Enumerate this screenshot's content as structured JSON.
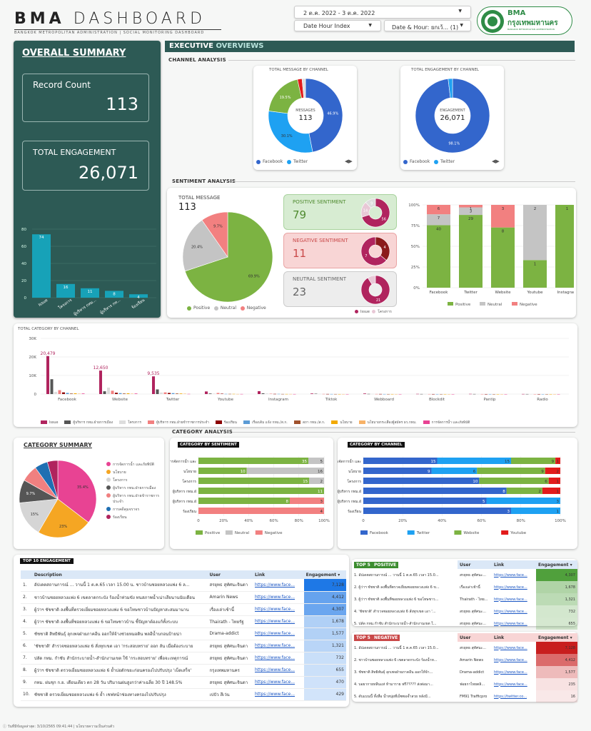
{
  "header": {
    "title_bold": "BMA",
    "title_light": "DASHBOARD",
    "subtitle": "BANGKOK METROPOLITAN ADMINISTRATION | SOCIAL MONITORING DASHBOARD",
    "date_range": "2 ต.ค. 2022 - 3 ต.ค. 2022",
    "dim1": "Date Hour Index",
    "dim2": "Date & Hour: ยกเว้...",
    "dim2_count": "(1)",
    "logo_top": "BMA",
    "logo_mid": "กรุงเทพมหานคร",
    "logo_bot": "BANGKOK METROPOLITAN ADMINISTRATION"
  },
  "summary": {
    "title": "OVERALL SUMMARY",
    "record_label": "Record Count",
    "record_value": "113",
    "eng_label": "TOTAL ENGAGEMENT",
    "eng_value": "26,071",
    "bars": {
      "categories": [
        "Issue",
        "โครงการ",
        "ผู้บริหาร กทม...",
        "ผู้บริหาร กท...",
        "ร้องเรียน"
      ],
      "values": [
        74,
        16,
        11,
        8,
        4
      ],
      "yticks": [
        "80",
        "60",
        "40",
        "20",
        "0"
      ]
    }
  },
  "exec": {
    "title_a": "EXECUTIVE",
    "title_b": "OVERVIEWS",
    "channel_analysis": "CHANNEL ANALYSIS",
    "sentiment_analysis": "SENTIMENT ANALYSIS",
    "category_analysis": "CATEGORY ANALYSIS"
  },
  "donut1": {
    "title": "TOTAL MESSAGE BY CHANNEL",
    "center_label": "MESSAGES",
    "center_value": "113",
    "labels": [
      "46.9%",
      "30.1%",
      "19.5%"
    ],
    "legend": [
      "Facebook",
      "Twitter"
    ]
  },
  "donut2": {
    "title": "TOTAL ENGAGEMENT BY CHANNEL",
    "center_label": "ENGAGEMENT",
    "center_value": "26,071",
    "labels": [
      "98.1%"
    ],
    "legend": [
      "Facebook",
      "Twitter"
    ]
  },
  "sentpie": {
    "label": "TOTAL MESSAGE",
    "value": "113",
    "slices": [
      "69.9%",
      "20.4%",
      "9.7%"
    ],
    "legend": [
      "Positive",
      "Neutral",
      "Negative"
    ]
  },
  "sentbox": {
    "pos_label": "POSITIVE SENTIMENT",
    "pos_value": "79",
    "neg_label": "NEGATIVE SENTIMENT",
    "neg_value": "11",
    "neu_label": "NEUTRAL SENTIMENT",
    "neu_value": "23",
    "legend": [
      "Issue",
      "โครงการ"
    ],
    "pos_ring": [
      "56",
      "14",
      "9"
    ],
    "neg_ring": [
      "4",
      "7"
    ],
    "neu_ring": [
      "21"
    ]
  },
  "chart_data": [
    {
      "type": "bar",
      "title": "",
      "categories": [
        "Facebook",
        "Twitter",
        "Website",
        "Youtube",
        "Instagram"
      ],
      "series": [
        {
          "name": "Positive",
          "values": [
            40,
            29,
            8,
            1,
            1
          ]
        },
        {
          "name": "Neutral",
          "values": [
            7,
            3,
            null,
            2,
            null
          ]
        },
        {
          "name": "Negative",
          "values": [
            6,
            1,
            3,
            null,
            null
          ]
        }
      ],
      "yticks": [
        "100%",
        "75%",
        "50%",
        "25%",
        "0%"
      ]
    },
    {
      "type": "bar",
      "title": "TOTAL CATEGORY BY CHANNEL",
      "categories": [
        "Facebook",
        "Website",
        "Twitter",
        "Youtube",
        "Instagram",
        "Tiktok",
        "Webboard",
        "Blockdit",
        "Pantip",
        "Radio"
      ],
      "yticks": [
        "30K",
        "20K",
        "10K",
        "0"
      ],
      "labels": [
        "20,479",
        "12,650",
        "9,535"
      ],
      "legend": [
        "Issue",
        "ผู้บริหาร กทม.ฝ่ายการเมือง",
        "โครงการ",
        "ผู้บริหาร กทม.ฝ่ายข้าราชการประจำ",
        "ร้องเรียน",
        "เรื่องเดิม แจ้ง กทม./ส.ก.",
        "สภา กทม./ส.ก.",
        "นโยบาย",
        "นโยบายกระเสื่องผู้สมัคร ผว.กทม.",
        "การจัดการน้ำ และภัยพิบัติ"
      ]
    },
    {
      "type": "pie",
      "title": "CATEGORY SUMMARY",
      "labels": [
        "35.4%",
        "23%",
        "15%",
        "9.7%"
      ],
      "legend": [
        "การจัดการน้ำ และภัยพิบัติ",
        "นโยบาย",
        "โครงการ",
        "ผู้บริหาร กทม.ฝ่ายการเมือง",
        "ผู้บริหาร กทม.ฝ่ายข้าราชการประจำ",
        "การคดีคุมจราจร",
        "ร้องเรียน"
      ]
    },
    {
      "type": "bar",
      "title": "CATEGORY BY SENTIMENT",
      "categories": [
        "การจัดการน้ำ และภัยพิบัติ",
        "นโยบาย",
        "โครงการ",
        "ผู้บริหาร กทม.ฝ่าย",
        "ผู้บริหาร กทม.ฝ่ายข้าราช..",
        "ร้องเรียน"
      ],
      "series": [
        {
          "name": "Positive",
          "values": [
            35,
            10,
            15,
            11,
            8,
            null
          ]
        },
        {
          "name": "Neutral",
          "values": [
            5,
            16,
            2,
            null,
            null,
            null
          ]
        },
        {
          "name": "Negative",
          "values": [
            null,
            null,
            null,
            null,
            3,
            4
          ]
        }
      ],
      "xticks": [
        "0",
        "20%",
        "40%",
        "60%",
        "80%",
        "100%"
      ]
    },
    {
      "type": "bar",
      "title": "CATEGORY BY CHANNEL",
      "categories": [
        "การจัดการน้ำ และภัยพิบัติ",
        "นโยบาย",
        "โครงการ",
        "ผู้บริหาร กทม.ฝ่าย",
        "ผู้บริหาร กทม.ฝ่ายข้าราช..",
        "ร้องเรียน"
      ],
      "series": [
        {
          "name": "Facebook",
          "values": [
            15,
            9,
            10,
            8,
            5,
            3
          ]
        },
        {
          "name": "Twitter",
          "values": [
            15,
            6,
            null,
            null,
            3,
            1
          ]
        },
        {
          "name": "Website",
          "values": [
            9,
            9,
            6,
            2,
            null,
            null
          ]
        },
        {
          "name": "Youtube",
          "values": [
            1,
            2,
            1,
            1,
            null,
            null
          ]
        }
      ],
      "xticks": [
        "0",
        "20%",
        "40%",
        "60%",
        "80%",
        "100%"
      ]
    }
  ],
  "top10": {
    "title": "TOP 10 ENGAGEMENT",
    "cols": [
      "Description",
      "User",
      "Link",
      "Engagement"
    ],
    "rows": [
      [
        "1.",
        "อัปเดตสถานการณ์ ... วานนี้ 1 ต.ค.65 เวลา 15.00 น. ชาวบ้านซอยหลวงแพ่ง 6 ล...",
        "สรยุทธ สุทัศนะจินดา",
        "https://www.face...",
        "7,128"
      ],
      [
        "2.",
        "ชาวบ้านซอยหลวงแพ่ง 6 เขตลาดกระบัง ร้องน้ำท่วมขัง ทนสภาพน้ำเน่าเสียนานนับเดือน",
        "Amarin News",
        "https://www.face...",
        "4,412"
      ],
      [
        "3.",
        "ผู้ว่าฯ ชัชชาติ ลงพื้นที่ตรวจเยี่ยมซอยหลวงแพ่ง 6 ขอโทษชาวบ้านปัญหาสะสมมานาน",
        "เรื่องเล่าเช้านี้",
        "https://www.face...",
        "4,307"
      ],
      [
        "4.",
        "ผู้ว่าฯ ชัชชาติ ลงพื้นที่ซอยหลวงแพ่ง 6 ขอโทษชาวบ้าน ชี้ปัญหาต้องแก้ทั้งระบบ",
        "Thairath - ไทยรัฐ",
        "https://www.face...",
        "1,678"
      ],
      [
        "5.",
        "ชัชชาติ สิทธิพันธุ์ ลุกเพจฝ่ายภาคอีน ออกให้จ้างช่วยหมอดิน พลอีน้ำบกอนป้ายน่า",
        "Drama-addict",
        "https://www.face...",
        "1,577"
      ],
      [
        "6.",
        "'ชัชชาติ' สำรวจซอยหลวงแพ่ง 6 สั่งทุกเขต เอา 'กระสอบทราย' ออก ลัน เมื่อต้องระบาย",
        "สรยุทธ สุทัศนะจินดา",
        "https://www.face...",
        "1,321"
      ],
      [
        "7.",
        "ปลัด กทม. กำชับ สำนักระบายน้ำ-สำนักงานเขต ใช้ 'กระสอบทราย' เพื่อจะเหตุการณ์",
        "สรยุทธ สุทัศนะจินดา",
        "https://www.face...",
        "732"
      ],
      [
        "8.",
        "ผู้ว่าฯ ชัชชาติ ตรวจเยี่ยมซอยหลวงแพ่ง 6 ย้ำบ่อดักขยะก่อนครองไปปรับปรุง 'เบ็ดเสร็จ'",
        "กรุงเทพมหานคร",
        "https://www.face...",
        "655"
      ],
      [
        "9.",
        "กทม. ฝนชุก ก.ย. เดือนเดียว ตก 28 วัน ปริมาณฝนสูงกว่าค่าเฉลี่ย 30 ปี 148.5%",
        "สรยุทธ สุทัศนะจินดา",
        "https://www.face...",
        "470"
      ],
      [
        "10.",
        "ชัชชาติ ตรวจเยี่ยมซอยหลวงแพ่ง 6 ย้ำ เชฟหน้าช่องทางครองไปปรับปรุง",
        "เปปัว สีเว่น",
        "https://www.face...",
        "429"
      ]
    ]
  },
  "top5pos": {
    "title": "TOP 5",
    "title_b": "POSITIVE",
    "cols": [
      "User",
      "Link",
      "Engagement"
    ],
    "rows": [
      [
        "1.",
        "อัปเดตสถานการณ์ ... วานนี้ 1 ต.ค.65 เวลา 15.0...",
        "สรยุทธ สุทัศนะ...",
        "https://www.face...",
        "4,307"
      ],
      [
        "2.",
        "ผู้ว่าฯ ชัชชาติ ลงพื้นที่ตรวจเยี่ยมซอยหลวงแพ่ง 6 ข...",
        "เรื่องเล่าเช้านี้",
        "https://www.face...",
        "1,678"
      ],
      [
        "3.",
        "ผู้ว่าฯ ชัชชาติ ลงพื้นที่ซอยหลวงแพ่ง 6 ขอโทษชาว...",
        "Thairath - ไทย...",
        "https://www.face...",
        "1,321"
      ],
      [
        "4.",
        "'ชัชชาติ' สำรวจซอยหลวงแพ่ง 6 สั่งทุกเขต เอา '...",
        "สรยุทธ สุทัศนะ...",
        "https://www.face...",
        "732"
      ],
      [
        "5.",
        "ปลัด กทม.กำชับ สำนักระบายน้ำ-สำนักงานเขต ใ...",
        "สรยุทธ สุทัศนะ...",
        "https://www.face...",
        "655"
      ]
    ]
  },
  "top5neg": {
    "title": "TOP 5",
    "title_b": "NEGATIVE",
    "cols": [
      "User",
      "Link",
      "Engagement"
    ],
    "rows": [
      [
        "1.",
        "อัปเดตสถานการณ์ ... วานนี้ 1 ต.ค.65 เวลา 15.0...",
        "สรยุทธ สุทัศนะ...",
        "https://www.face...",
        "7,128"
      ],
      [
        "2.",
        "ชาวบ้านซอยหลวงแพ่ง 6 เขตลาดกระบัง ร้องน้ำท...",
        "Amarin News",
        "https://www.face...",
        "4,412"
      ],
      [
        "3.",
        "ชัชชาติ สิทธิพันธุ์ ลุกเพจฝ่ายภาคอีน ออกให้จ้า...",
        "Drama-addict",
        "https://www.face...",
        "1,577"
      ],
      [
        "4.",
        "บอยากายหลีนแห่ ห้ามาราย ฟรี????? ส่งต่อมา...",
        "ฟอยกาไทยตลิ...",
        "https://www.face...",
        "235"
      ],
      [
        "5.",
        "ดับแบนนี้ ทั้งสื่อ น้ำหนุ่ยที่เย็ซซอจ้ำสวย หลังมี...",
        "FM91 Trafficpro",
        "https://twitter.co...",
        "16"
      ]
    ]
  },
  "footer": {
    "text": "วันที่มีข้อมูลล่าสุด: 3/10/2565 09:41:44 | นโยบายความเป็นส่วนตัว"
  },
  "colors": {
    "teal": "#2d5a55",
    "facebook": "#3366cc",
    "twitter": "#1ea1f2",
    "positive": "#7cb342",
    "neutral": "#c4c4c4",
    "negative": "#f28080",
    "issue": "#b0245e"
  }
}
